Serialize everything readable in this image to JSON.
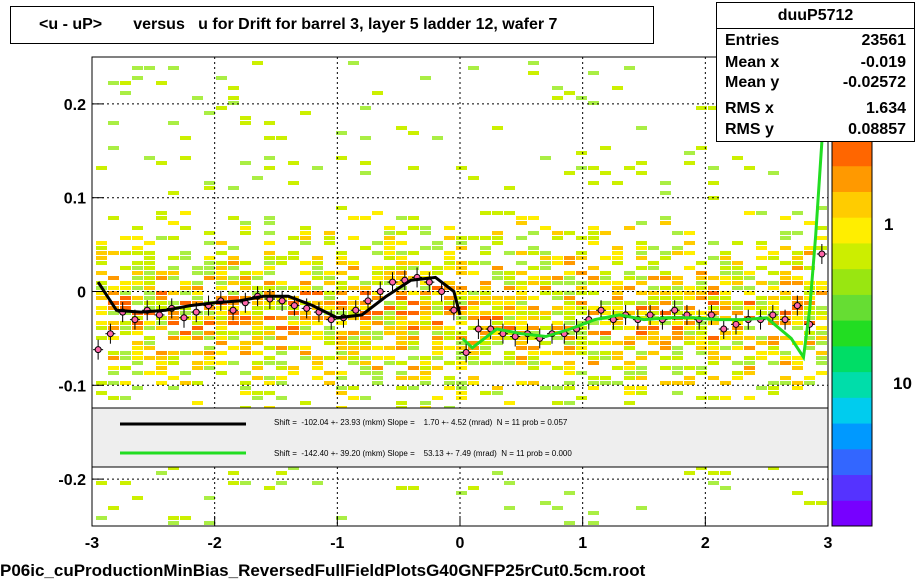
{
  "title": "<u - uP>       versus   u for Drift for barrel 3, layer 5 ladder 12, wafer 7",
  "stats": {
    "name": "duuP5712",
    "rows": [
      {
        "key": "Entries",
        "value": "23561"
      },
      {
        "key": "Mean x",
        "value": "-0.019"
      },
      {
        "key": "Mean y",
        "value": "-0.02572"
      },
      {
        "key": "RMS x",
        "value": "1.634"
      },
      {
        "key": "RMS y",
        "value": "0.08857"
      }
    ]
  },
  "footer": "P06ic_cuProductionMinBias_ReversedFullFieldPlotsG40GNFP25rCut0.5cm.root",
  "colors": {
    "fit_black": "#000000",
    "fit_green": "#22dd22",
    "points": "#000000",
    "markers": "#ff66aa"
  },
  "legend": [
    {
      "color": "#000000",
      "text": "Shift =  -102.04 +- 23.93 (mkm) Slope =    1.70 +- 4.52 (mrad)  N = 11 prob = 0.057"
    },
    {
      "color": "#22dd22",
      "text": "Shift =  -142.40 +- 39.20 (mkm) Slope =    53.13 +- 7.49 (mrad)  N = 11 prob = 0.000"
    }
  ],
  "chart_data": {
    "type": "heatmap",
    "xlim": [
      -3,
      3
    ],
    "ylim": [
      -0.25,
      0.25
    ],
    "x_ticks": [
      -3,
      -2,
      -1,
      0,
      1,
      2,
      3
    ],
    "x_tick_labels": [
      "-3",
      "-2",
      "-1",
      "0",
      "1",
      "2",
      "3"
    ],
    "y_ticks": [
      -0.2,
      -0.1,
      0,
      0.1,
      0.2
    ],
    "y_tick_labels": [
      "-0.2",
      "-0.1",
      "0",
      "0.1",
      "0.2"
    ],
    "colorbar_labels": [
      "1",
      "10"
    ],
    "grid": true,
    "profile_points": {
      "x": [
        -2.95,
        -2.85,
        -2.75,
        -2.65,
        -2.55,
        -2.45,
        -2.35,
        -2.25,
        -2.15,
        -2.05,
        -1.95,
        -1.85,
        -1.75,
        -1.65,
        -1.55,
        -1.45,
        -1.35,
        -1.25,
        -1.15,
        -1.05,
        -0.95,
        -0.85,
        -0.75,
        -0.65,
        -0.55,
        -0.45,
        -0.35,
        -0.25,
        -0.15,
        -0.05,
        0.05,
        0.15,
        0.25,
        0.35,
        0.45,
        0.55,
        0.65,
        0.75,
        0.85,
        0.95,
        1.05,
        1.15,
        1.25,
        1.35,
        1.45,
        1.55,
        1.65,
        1.75,
        1.85,
        1.95,
        2.05,
        2.15,
        2.25,
        2.35,
        2.45,
        2.55,
        2.65,
        2.75,
        2.85,
        2.95
      ],
      "y": [
        -0.062,
        -0.045,
        -0.022,
        -0.03,
        -0.02,
        -0.025,
        -0.018,
        -0.028,
        -0.022,
        -0.015,
        -0.01,
        -0.02,
        -0.012,
        -0.005,
        -0.008,
        -0.01,
        -0.015,
        -0.018,
        -0.022,
        -0.03,
        -0.028,
        -0.02,
        -0.01,
        0.0,
        0.01,
        0.012,
        0.015,
        0.01,
        0.0,
        -0.02,
        -0.065,
        -0.04,
        -0.04,
        -0.045,
        -0.048,
        -0.045,
        -0.05,
        -0.045,
        -0.045,
        -0.04,
        -0.03,
        -0.02,
        -0.03,
        -0.025,
        -0.03,
        -0.025,
        -0.03,
        -0.02,
        -0.025,
        -0.03,
        -0.025,
        -0.04,
        -0.035,
        -0.03,
        -0.03,
        -0.025,
        -0.03,
        -0.015,
        -0.035,
        0.04
      ]
    },
    "fits": [
      {
        "color": "#000000",
        "x": [
          -2.95,
          -2.8,
          -2.6,
          -2.4,
          -2.2,
          -2.0,
          -1.8,
          -1.6,
          -1.4,
          -1.2,
          -1.0,
          -0.8,
          -0.6,
          -0.4,
          -0.2,
          -0.05,
          0.0
        ],
        "y": [
          0.01,
          -0.02,
          -0.022,
          -0.02,
          -0.015,
          -0.012,
          -0.01,
          -0.005,
          -0.005,
          -0.015,
          -0.028,
          -0.025,
          -0.005,
          0.012,
          0.015,
          0.0,
          -0.025
        ]
      },
      {
        "color": "#22dd22",
        "x": [
          0.02,
          0.1,
          0.3,
          0.5,
          0.7,
          0.9,
          1.1,
          1.3,
          1.5,
          1.7,
          1.9,
          2.1,
          2.3,
          2.5,
          2.7,
          2.8,
          2.85,
          2.9,
          2.95
        ],
        "y": [
          -0.05,
          -0.06,
          -0.04,
          -0.045,
          -0.048,
          -0.04,
          -0.03,
          -0.025,
          -0.03,
          -0.028,
          -0.028,
          -0.03,
          -0.03,
          -0.028,
          -0.05,
          -0.07,
          -0.02,
          0.06,
          0.16
        ]
      }
    ]
  }
}
